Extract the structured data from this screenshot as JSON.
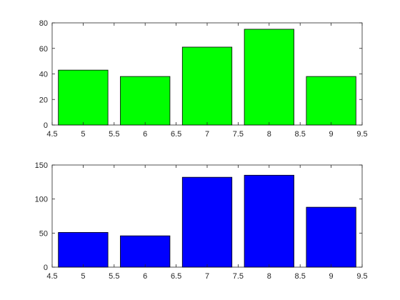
{
  "chart_data": [
    {
      "type": "bar",
      "x": [
        5,
        6,
        7,
        8,
        9
      ],
      "values": [
        43,
        38,
        61,
        75,
        38
      ],
      "xlim": [
        4.5,
        9.5
      ],
      "ylim": [
        0,
        80
      ],
      "xticks": [
        4.5,
        5,
        5.5,
        6,
        6.5,
        7,
        7.5,
        8,
        8.5,
        9,
        9.5
      ],
      "xtick_labels": [
        "4.5",
        "5",
        "5.5",
        "6",
        "6.5",
        "7",
        "7.5",
        "8",
        "8.5",
        "9",
        "9.5"
      ],
      "yticks": [
        0,
        20,
        40,
        60,
        80
      ],
      "ytick_labels": [
        "0",
        "20",
        "40",
        "60",
        "80"
      ],
      "bar_width": 0.8,
      "color": "#00ff00",
      "title": "",
      "xlabel": "",
      "ylabel": "",
      "grid": false
    },
    {
      "type": "bar",
      "x": [
        5,
        6,
        7,
        8,
        9
      ],
      "values": [
        51,
        46,
        132,
        135,
        88
      ],
      "xlim": [
        4.5,
        9.5
      ],
      "ylim": [
        0,
        150
      ],
      "xticks": [
        4.5,
        5,
        5.5,
        6,
        6.5,
        7,
        7.5,
        8,
        8.5,
        9,
        9.5
      ],
      "xtick_labels": [
        "4.5",
        "5",
        "5.5",
        "6",
        "6.5",
        "7",
        "7.5",
        "8",
        "8.5",
        "9",
        "9.5"
      ],
      "yticks": [
        0,
        50,
        100,
        150
      ],
      "ytick_labels": [
        "0",
        "50",
        "100",
        "150"
      ],
      "bar_width": 0.8,
      "color": "#0000ff",
      "title": "",
      "xlabel": "",
      "ylabel": "",
      "grid": false
    }
  ]
}
